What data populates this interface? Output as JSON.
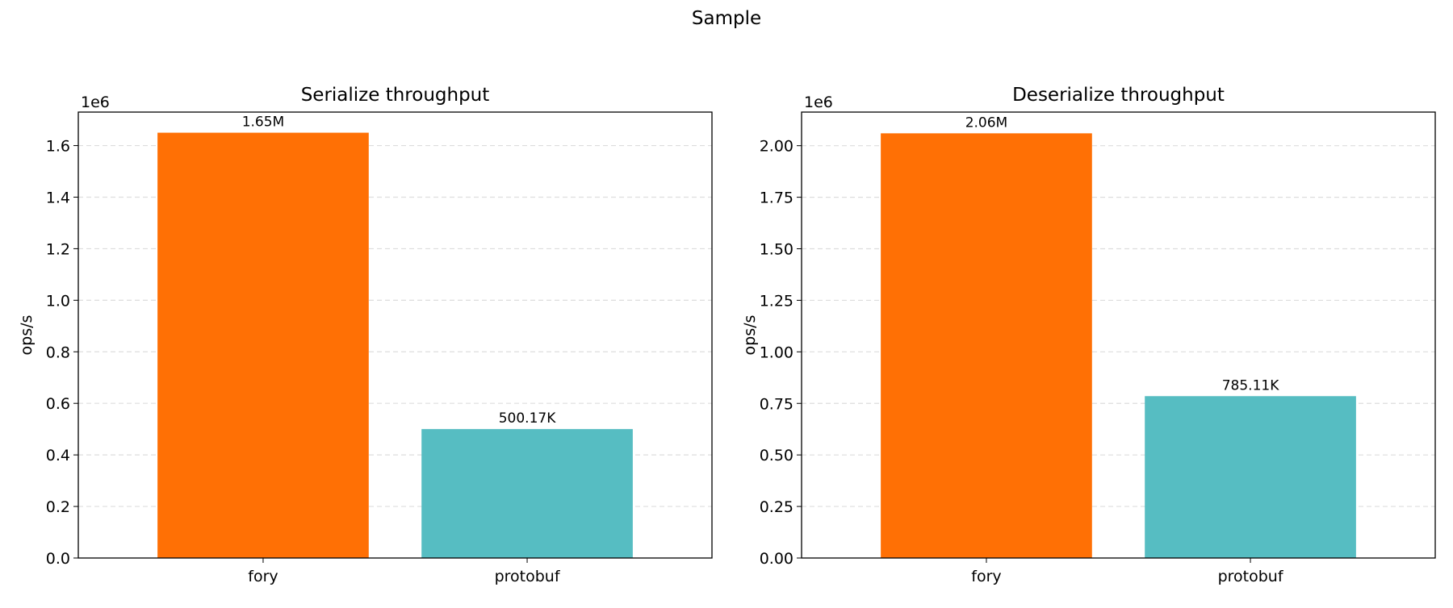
{
  "suptitle": "Sample",
  "chart_data": [
    {
      "type": "bar",
      "title": "Serialize throughput",
      "xlabel": "",
      "ylabel": "ops/s",
      "offset_label": "1e6",
      "categories": [
        "fory",
        "protobuf"
      ],
      "values": [
        1650000,
        500170
      ],
      "data_labels": [
        "1.65M",
        "500.17K"
      ],
      "colors": [
        "#ff7005",
        "#56bdc2"
      ],
      "ylim": [
        0,
        1730000
      ],
      "yticks": [
        0,
        200000,
        400000,
        600000,
        800000,
        1000000,
        1200000,
        1400000,
        1600000
      ],
      "ytick_labels": [
        "0.0",
        "0.2",
        "0.4",
        "0.6",
        "0.8",
        "1.0",
        "1.2",
        "1.4",
        "1.6"
      ],
      "grid": "y-dashed"
    },
    {
      "type": "bar",
      "title": "Deserialize throughput",
      "xlabel": "",
      "ylabel": "ops/s",
      "offset_label": "1e6",
      "categories": [
        "fory",
        "protobuf"
      ],
      "values": [
        2060000,
        785110
      ],
      "data_labels": [
        "2.06M",
        "785.11K"
      ],
      "colors": [
        "#ff7005",
        "#56bdc2"
      ],
      "ylim": [
        0,
        2163000
      ],
      "yticks": [
        0,
        250000,
        500000,
        750000,
        1000000,
        1250000,
        1500000,
        1750000,
        2000000
      ],
      "ytick_labels": [
        "0.00",
        "0.25",
        "0.50",
        "0.75",
        "1.00",
        "1.25",
        "1.50",
        "1.75",
        "2.00"
      ],
      "grid": "y-dashed"
    }
  ]
}
